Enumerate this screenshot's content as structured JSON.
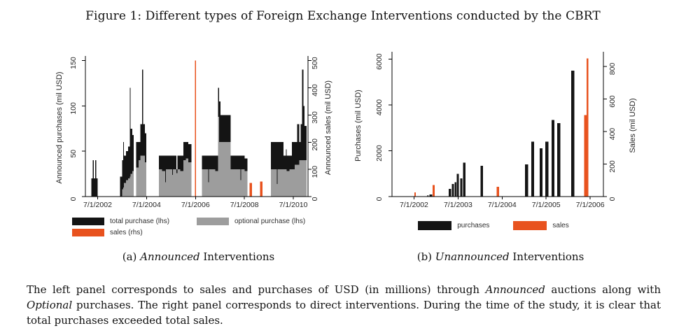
{
  "title": "Figure 1: Different types of Foreign Exchange Interventions conducted by the CBRT",
  "colors": {
    "purchase": "#141414",
    "optional": "#9d9d9d",
    "sales": "#e8521e",
    "axis": "#000000",
    "chart_text": "#262626"
  },
  "panel_a_caption": [
    {
      "t": "(a) "
    },
    {
      "t": "Announced",
      "i": true
    },
    {
      "t": " Interventions"
    }
  ],
  "panel_b_caption": [
    {
      "t": "(b) "
    },
    {
      "t": "Unannounced",
      "i": true
    },
    {
      "t": " Interventions"
    }
  ],
  "note_segments": [
    {
      "t": "The left panel corresponds to sales and purchases of USD (in millions) through "
    },
    {
      "t": "Announced",
      "i": true
    },
    {
      "t": " auctions along with "
    },
    {
      "t": "Optional",
      "i": true
    },
    {
      "t": " purchases. The right panel corresponds to direct interventions. During the time of the study, it is clear that total purchases exceeded total sales."
    }
  ],
  "chart_data": [
    {
      "type": "bar",
      "panel": "a",
      "title": "Announced Interventions",
      "x_axis": {
        "range": [
          2002.0,
          2011.1
        ],
        "ticks": [
          2002.5,
          2004.5,
          2006.5,
          2008.5,
          2010.5
        ],
        "tick_labels": [
          "7/1/2002",
          "7/1/2004",
          "7/1/2006",
          "7/1/2008",
          "7/1/2010"
        ]
      },
      "y_left": {
        "label": "Announced purchases (mil USD)",
        "range": [
          0,
          152
        ],
        "ticks": [
          0,
          50,
          100,
          150
        ]
      },
      "y_right": {
        "label": "Announced sales (mil USD)",
        "range": [
          0,
          507
        ],
        "ticks": [
          0,
          100,
          200,
          300,
          400,
          500
        ]
      },
      "legend": [
        {
          "label": "total purchase (lhs)",
          "color_key": "purchase"
        },
        {
          "label": "optional purchase (lhs)",
          "color_key": "optional"
        },
        {
          "label": "sales (rhs)",
          "color_key": "sales"
        }
      ],
      "bars": [
        {
          "x": 2002.25,
          "w": 0.05,
          "total": 20,
          "optional": 0
        },
        {
          "x": 2002.3,
          "w": 0.04,
          "total": 40,
          "optional": 0
        },
        {
          "x": 2002.34,
          "w": 0.06,
          "total": 20,
          "optional": 0
        },
        {
          "x": 2002.4,
          "w": 0.04,
          "total": 40,
          "optional": 0
        },
        {
          "x": 2002.44,
          "w": 0.06,
          "total": 20,
          "optional": 0
        },
        {
          "x": 2003.42,
          "w": 0.08,
          "total": 22,
          "optional": 0
        },
        {
          "x": 2003.5,
          "w": 0.04,
          "total": 40,
          "optional": 8
        },
        {
          "x": 2003.54,
          "w": 0.03,
          "total": 60,
          "optional": 10
        },
        {
          "x": 2003.57,
          "w": 0.09,
          "total": 45,
          "optional": 15
        },
        {
          "x": 2003.66,
          "w": 0.08,
          "total": 50,
          "optional": 18
        },
        {
          "x": 2003.74,
          "w": 0.07,
          "total": 55,
          "optional": 20
        },
        {
          "x": 2003.81,
          "w": 0.03,
          "total": 120,
          "optional": 22
        },
        {
          "x": 2003.84,
          "w": 0.08,
          "total": 75,
          "optional": 25
        },
        {
          "x": 2003.92,
          "w": 0.06,
          "total": 68,
          "optional": 28
        },
        {
          "x": 2004.08,
          "w": 0.09,
          "total": 60,
          "optional": 32
        },
        {
          "x": 2004.17,
          "w": 0.08,
          "total": 60,
          "optional": 40
        },
        {
          "x": 2004.25,
          "w": 0.07,
          "total": 80,
          "optional": 45
        },
        {
          "x": 2004.32,
          "w": 0.03,
          "total": 140,
          "optional": 45
        },
        {
          "x": 2004.35,
          "w": 0.08,
          "total": 80,
          "optional": 45
        },
        {
          "x": 2004.43,
          "w": 0.06,
          "total": 70,
          "optional": 38
        },
        {
          "x": 2005.0,
          "w": 0.14,
          "total": 45,
          "optional": 30
        },
        {
          "x": 2005.14,
          "w": 0.12,
          "total": 45,
          "optional": 28
        },
        {
          "x": 2005.26,
          "w": 0.03,
          "total": 45,
          "optional": 16
        },
        {
          "x": 2005.29,
          "w": 0.14,
          "total": 45,
          "optional": 30
        },
        {
          "x": 2005.43,
          "w": 0.12,
          "total": 45,
          "optional": 30
        },
        {
          "x": 2005.55,
          "w": 0.03,
          "total": 45,
          "optional": 24
        },
        {
          "x": 2005.58,
          "w": 0.14,
          "total": 45,
          "optional": 30
        },
        {
          "x": 2005.72,
          "w": 0.04,
          "total": 30,
          "optional": 26
        },
        {
          "x": 2005.76,
          "w": 0.12,
          "total": 45,
          "optional": 30
        },
        {
          "x": 2005.88,
          "w": 0.12,
          "total": 45,
          "optional": 28
        },
        {
          "x": 2006.0,
          "w": 0.1,
          "total": 60,
          "optional": 40
        },
        {
          "x": 2006.1,
          "w": 0.1,
          "total": 60,
          "optional": 42
        },
        {
          "x": 2006.2,
          "w": 0.13,
          "total": 58,
          "optional": 38
        },
        {
          "x": 2006.76,
          "w": 0.14,
          "total": 45,
          "optional": 30
        },
        {
          "x": 2006.9,
          "w": 0.12,
          "total": 45,
          "optional": 30
        },
        {
          "x": 2007.02,
          "w": 0.03,
          "total": 45,
          "optional": 16
        },
        {
          "x": 2007.05,
          "w": 0.14,
          "total": 45,
          "optional": 30
        },
        {
          "x": 2007.19,
          "w": 0.12,
          "total": 45,
          "optional": 30
        },
        {
          "x": 2007.31,
          "w": 0.11,
          "total": 45,
          "optional": 28
        },
        {
          "x": 2007.42,
          "w": 0.04,
          "total": 120,
          "optional": 88
        },
        {
          "x": 2007.46,
          "w": 0.06,
          "total": 105,
          "optional": 60
        },
        {
          "x": 2007.52,
          "w": 0.28,
          "total": 90,
          "optional": 60
        },
        {
          "x": 2007.8,
          "w": 0.14,
          "total": 90,
          "optional": 60
        },
        {
          "x": 2007.94,
          "w": 0.14,
          "total": 45,
          "optional": 30
        },
        {
          "x": 2008.08,
          "w": 0.14,
          "total": 45,
          "optional": 30
        },
        {
          "x": 2008.22,
          "w": 0.12,
          "total": 45,
          "optional": 30
        },
        {
          "x": 2008.34,
          "w": 0.03,
          "total": 45,
          "optional": 18
        },
        {
          "x": 2008.37,
          "w": 0.14,
          "total": 45,
          "optional": 30
        },
        {
          "x": 2008.51,
          "w": 0.12,
          "total": 42,
          "optional": 28
        },
        {
          "x": 2009.58,
          "w": 0.13,
          "total": 60,
          "optional": 30
        },
        {
          "x": 2009.71,
          "w": 0.12,
          "total": 60,
          "optional": 30
        },
        {
          "x": 2009.83,
          "w": 0.03,
          "total": 60,
          "optional": 14
        },
        {
          "x": 2009.86,
          "w": 0.13,
          "total": 60,
          "optional": 30
        },
        {
          "x": 2009.99,
          "w": 0.11,
          "total": 60,
          "optional": 30
        },
        {
          "x": 2010.1,
          "w": 0.1,
          "total": 45,
          "optional": 30
        },
        {
          "x": 2010.2,
          "w": 0.03,
          "total": 52,
          "optional": 30
        },
        {
          "x": 2010.23,
          "w": 0.11,
          "total": 45,
          "optional": 28
        },
        {
          "x": 2010.34,
          "w": 0.1,
          "total": 45,
          "optional": 30
        },
        {
          "x": 2010.44,
          "w": 0.12,
          "total": 60,
          "optional": 30
        },
        {
          "x": 2010.56,
          "w": 0.1,
          "total": 60,
          "optional": 35
        },
        {
          "x": 2010.66,
          "w": 0.08,
          "total": 80,
          "optional": 35
        },
        {
          "x": 2010.74,
          "w": 0.06,
          "total": 60,
          "optional": 40
        },
        {
          "x": 2010.8,
          "w": 0.05,
          "total": 80,
          "optional": 40
        },
        {
          "x": 2010.85,
          "w": 0.06,
          "total": 140,
          "optional": 40
        },
        {
          "x": 2010.91,
          "w": 0.05,
          "total": 100,
          "optional": 40
        },
        {
          "x": 2010.96,
          "w": 0.08,
          "total": 78,
          "optional": 40
        }
      ],
      "sales": [
        {
          "x": 2006.48,
          "w": 0.035,
          "value": 500
        },
        {
          "x": 2008.71,
          "w": 0.1,
          "value": 50
        },
        {
          "x": 2009.14,
          "w": 0.1,
          "value": 55
        }
      ]
    },
    {
      "type": "bar",
      "panel": "b",
      "title": "Unannounced Interventions",
      "x_axis": {
        "range": [
          2002.0,
          2006.8
        ],
        "ticks": [
          2002.5,
          2003.5,
          2004.5,
          2005.5,
          2006.5
        ],
        "tick_labels": [
          "7/1/2002",
          "7/1/2003",
          "7/1/2004",
          "7/1/2005",
          "7/1/2006"
        ]
      },
      "y_left": {
        "label": "Purchases (mil USD)",
        "range": [
          0,
          6200
        ],
        "ticks": [
          0,
          2000,
          4000,
          6000
        ]
      },
      "y_right": {
        "label": "Sales (mil USD)",
        "range": [
          0,
          873
        ],
        "ticks": [
          0,
          200,
          400,
          600,
          800
        ]
      },
      "legend": [
        {
          "label": "purchases",
          "color_key": "purchase"
        },
        {
          "label": "sales",
          "color_key": "sales"
        }
      ],
      "bars": [
        {
          "x": 2002.8,
          "w": 0.03,
          "total": 60
        },
        {
          "x": 2002.85,
          "w": 0.06,
          "total": 90
        },
        {
          "x": 2003.29,
          "w": 0.05,
          "total": 340
        },
        {
          "x": 2003.36,
          "w": 0.05,
          "total": 550
        },
        {
          "x": 2003.42,
          "w": 0.04,
          "total": 620
        },
        {
          "x": 2003.47,
          "w": 0.05,
          "total": 1000
        },
        {
          "x": 2003.55,
          "w": 0.05,
          "total": 790
        },
        {
          "x": 2003.61,
          "w": 0.06,
          "total": 1480
        },
        {
          "x": 2004.01,
          "w": 0.06,
          "total": 1340
        },
        {
          "x": 2005.02,
          "w": 0.07,
          "total": 1400
        },
        {
          "x": 2005.16,
          "w": 0.07,
          "total": 2400
        },
        {
          "x": 2005.35,
          "w": 0.07,
          "total": 2100
        },
        {
          "x": 2005.48,
          "w": 0.07,
          "total": 2400
        },
        {
          "x": 2005.62,
          "w": 0.07,
          "total": 3350
        },
        {
          "x": 2005.75,
          "w": 0.07,
          "total": 3200
        },
        {
          "x": 2006.07,
          "w": 0.07,
          "total": 5500
        }
      ],
      "sales": [
        {
          "x": 2002.51,
          "w": 0.03,
          "value": 25
        },
        {
          "x": 2002.92,
          "w": 0.05,
          "value": 70
        },
        {
          "x": 2004.38,
          "w": 0.05,
          "value": 60
        },
        {
          "x": 2006.36,
          "w": 0.1,
          "value": 500
        },
        {
          "x": 2006.42,
          "w": 0.04,
          "value": 850
        }
      ]
    }
  ]
}
